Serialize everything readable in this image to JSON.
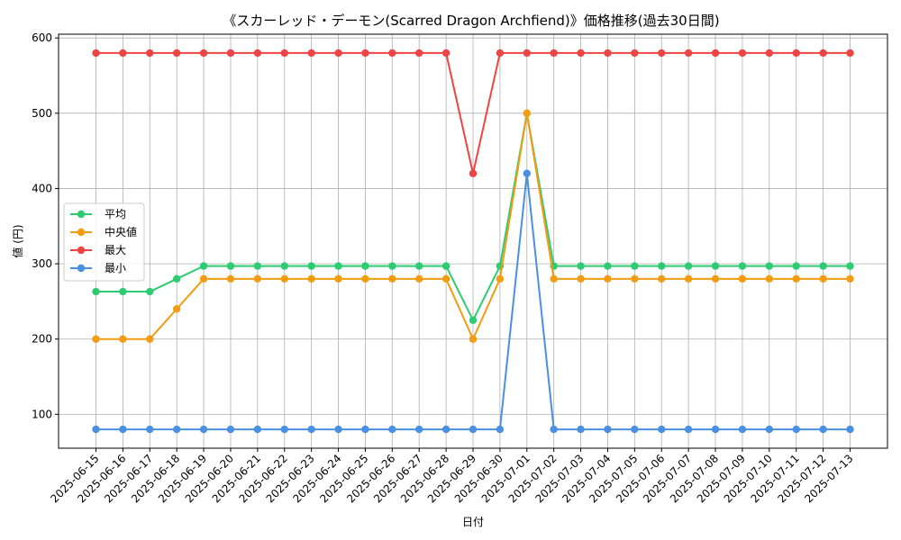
{
  "chart_data": {
    "type": "line",
    "title": "《スカーレッド・デーモン(Scarred Dragon Archfiend)》価格推移(過去30日間)",
    "xlabel": "日付",
    "ylabel": "値 (円)",
    "ylim": [
      55,
      605
    ],
    "yticks": [
      100,
      200,
      300,
      400,
      500,
      600
    ],
    "grid": true,
    "legend_position": "center-left",
    "categories": [
      "2025-06-15",
      "2025-06-16",
      "2025-06-17",
      "2025-06-18",
      "2025-06-19",
      "2025-06-20",
      "2025-06-21",
      "2025-06-22",
      "2025-06-23",
      "2025-06-24",
      "2025-06-25",
      "2025-06-26",
      "2025-06-27",
      "2025-06-28",
      "2025-06-29",
      "2025-06-30",
      "2025-07-01",
      "2025-07-02",
      "2025-07-03",
      "2025-07-04",
      "2025-07-05",
      "2025-07-06",
      "2025-07-07",
      "2025-07-08",
      "2025-07-09",
      "2025-07-10",
      "2025-07-11",
      "2025-07-12",
      "2025-07-13"
    ],
    "series": [
      {
        "name": "平均",
        "color": "#2ecc71",
        "values": [
          263,
          263,
          263,
          280,
          297,
          297,
          297,
          297,
          297,
          297,
          297,
          297,
          297,
          297,
          225,
          297,
          500,
          297,
          297,
          297,
          297,
          297,
          297,
          297,
          297,
          297,
          297,
          297,
          297
        ]
      },
      {
        "name": "中央値",
        "color": "#f39c12",
        "values": [
          200,
          200,
          200,
          240,
          280,
          280,
          280,
          280,
          280,
          280,
          280,
          280,
          280,
          280,
          200,
          280,
          500,
          280,
          280,
          280,
          280,
          280,
          280,
          280,
          280,
          280,
          280,
          280,
          280
        ]
      },
      {
        "name": "最大",
        "color": "#ef4444",
        "values": [
          580,
          580,
          580,
          580,
          580,
          580,
          580,
          580,
          580,
          580,
          580,
          580,
          580,
          580,
          420,
          580,
          580,
          580,
          580,
          580,
          580,
          580,
          580,
          580,
          580,
          580,
          580,
          580,
          580
        ]
      },
      {
        "name": "最小",
        "color": "#4a90e2",
        "values": [
          80,
          80,
          80,
          80,
          80,
          80,
          80,
          80,
          80,
          80,
          80,
          80,
          80,
          80,
          80,
          80,
          420,
          80,
          80,
          80,
          80,
          80,
          80,
          80,
          80,
          80,
          80,
          80,
          80
        ]
      }
    ]
  }
}
